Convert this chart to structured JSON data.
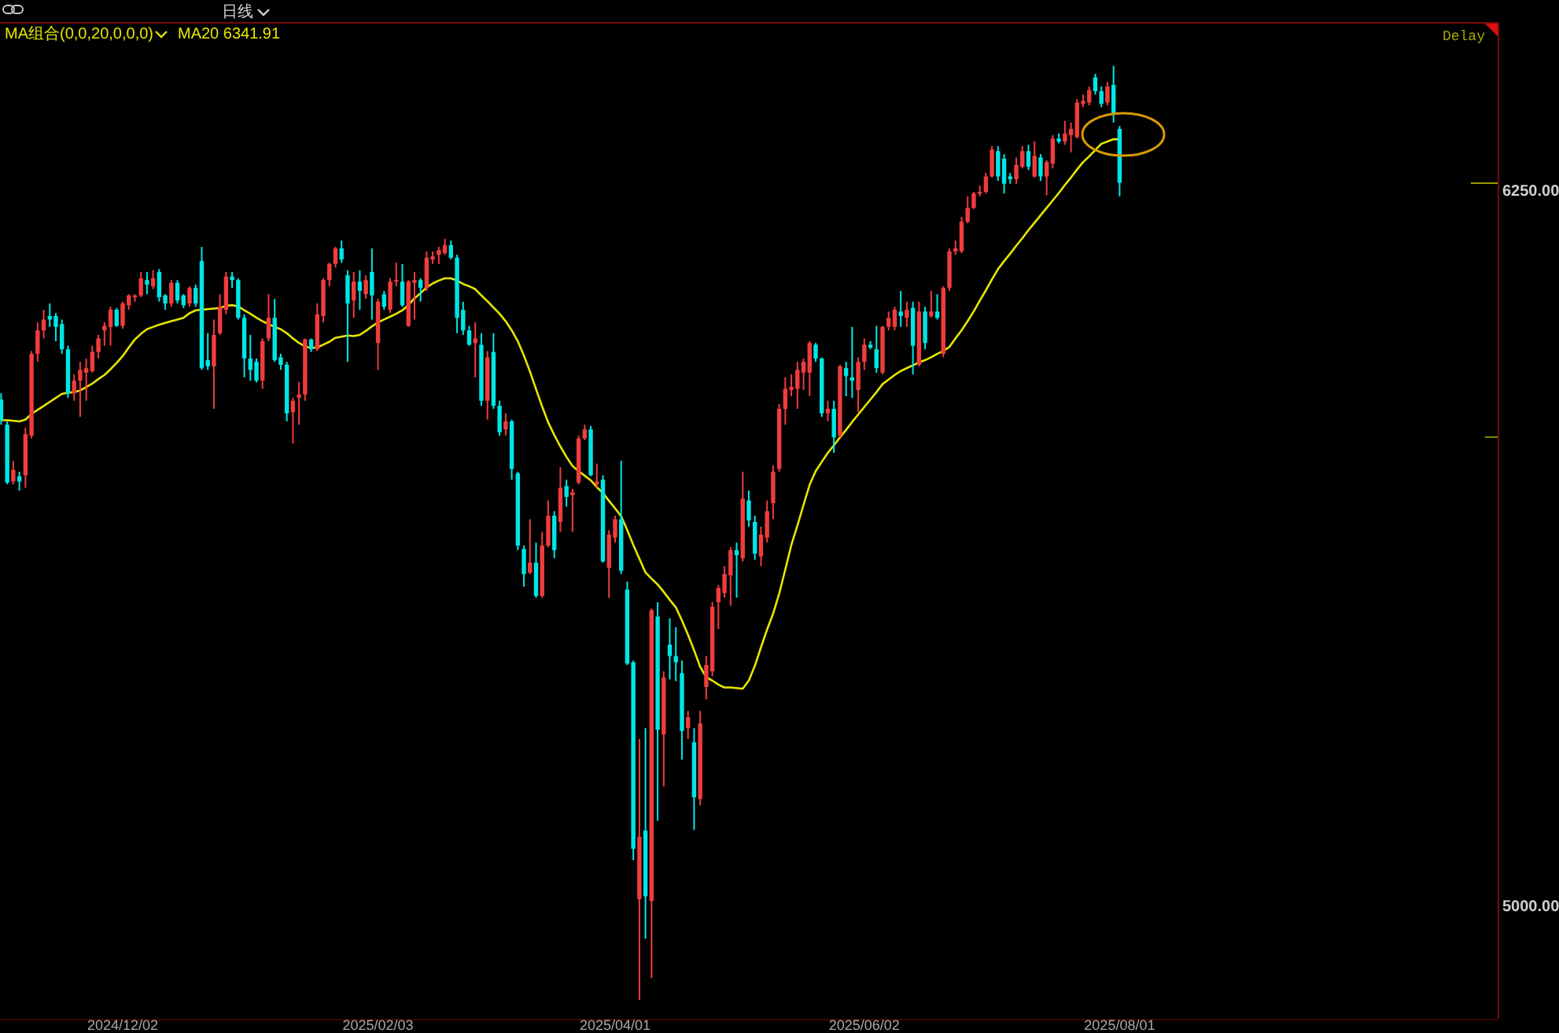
{
  "chart_data": {
    "type": "candlestick",
    "categories": [
      null,
      null,
      null,
      null,
      null,
      null,
      null,
      null,
      null,
      null,
      null,
      null,
      null,
      null,
      null,
      null,
      null,
      null,
      null,
      null,
      "2024/12/02",
      null,
      null,
      null,
      null,
      null,
      null,
      null,
      null,
      null,
      null,
      null,
      null,
      null,
      null,
      null,
      null,
      null,
      null,
      null,
      null,
      null,
      null,
      null,
      null,
      null,
      null,
      null,
      null,
      null,
      null,
      null,
      null,
      null,
      null,
      null,
      null,
      null,
      null,
      null,
      null,
      null,
      "2025/02/03",
      null,
      null,
      null,
      null,
      null,
      null,
      null,
      null,
      null,
      null,
      null,
      null,
      null,
      null,
      null,
      null,
      null,
      null,
      null,
      null,
      null,
      null,
      null,
      null,
      null,
      null,
      null,
      null,
      null,
      null,
      null,
      null,
      null,
      null,
      null,
      null,
      null,
      null,
      "2025/04/01",
      null,
      null,
      null,
      null,
      null,
      null,
      null,
      null,
      null,
      null,
      null,
      null,
      null,
      null,
      null,
      null,
      null,
      null,
      null,
      null,
      null,
      null,
      null,
      null,
      null,
      null,
      null,
      null,
      null,
      null,
      null,
      null,
      null,
      null,
      null,
      null,
      null,
      null,
      null,
      null,
      "2025/06/02",
      null,
      null,
      null,
      null,
      null,
      null,
      null,
      null,
      null,
      null,
      null,
      null,
      null,
      null,
      null,
      null,
      null,
      null,
      null,
      null,
      null,
      null,
      null,
      null,
      null,
      null,
      null,
      null,
      null,
      null,
      null,
      null,
      null,
      null,
      null,
      null,
      null,
      null,
      null,
      null,
      null,
      "2025/08/01"
    ],
    "ohlc": [
      [
        5887,
        5898,
        5843,
        5851
      ],
      [
        5843,
        5849,
        5739,
        5742
      ],
      [
        5744,
        5780,
        5739,
        5764
      ],
      [
        5753,
        5761,
        5728,
        5744
      ],
      [
        5755,
        5838,
        5733,
        5827
      ],
      [
        5824,
        5972,
        5819,
        5967
      ],
      [
        5967,
        6022,
        5953,
        6008
      ],
      [
        6008,
        6044,
        5994,
        6027
      ],
      [
        6033,
        6055,
        6014,
        6027
      ],
      [
        6033,
        6038,
        5989,
        6014
      ],
      [
        6019,
        6027,
        5967,
        5975
      ],
      [
        5975,
        5981,
        5890,
        5898
      ],
      [
        5898,
        5931,
        5885,
        5920
      ],
      [
        5920,
        5953,
        5857,
        5939
      ],
      [
        5934,
        5959,
        5885,
        5942
      ],
      [
        5937,
        5981,
        5934,
        5970
      ],
      [
        5970,
        6000,
        5959,
        5994
      ],
      [
        6008,
        6022,
        5981,
        6016
      ],
      [
        6014,
        6049,
        5981,
        6044
      ],
      [
        6044,
        6047,
        6014,
        6016
      ],
      [
        6016,
        6058,
        6011,
        6055
      ],
      [
        6052,
        6071,
        6044,
        6069
      ],
      [
        6066,
        6071,
        6058,
        6069
      ],
      [
        6069,
        6110,
        6066,
        6099
      ],
      [
        6096,
        6110,
        6071,
        6088
      ],
      [
        6085,
        6113,
        6080,
        6099
      ],
      [
        6110,
        6115,
        6058,
        6066
      ],
      [
        6069,
        6071,
        6044,
        6055
      ],
      [
        6055,
        6096,
        6049,
        6091
      ],
      [
        6091,
        6096,
        6055,
        6060
      ],
      [
        6069,
        6071,
        6047,
        6052
      ],
      [
        6055,
        6085,
        6049,
        6082
      ],
      [
        6082,
        6088,
        6049,
        6055
      ],
      [
        6129,
        6154,
        5939,
        5942
      ],
      [
        5956,
        6003,
        5939,
        5945
      ],
      [
        5945,
        6027,
        5871,
        6000
      ],
      [
        6003,
        6071,
        6000,
        6049
      ],
      [
        6044,
        6110,
        6036,
        6102
      ],
      [
        6102,
        6110,
        6082,
        6096
      ],
      [
        6096,
        6099,
        6027,
        6030
      ],
      [
        6030,
        6036,
        5926,
        5959
      ],
      [
        5959,
        6000,
        5920,
        5939
      ],
      [
        5953,
        5959,
        5917,
        5920
      ],
      [
        5920,
        5994,
        5906,
        5989
      ],
      [
        5994,
        6071,
        5989,
        6030
      ],
      [
        6030,
        6063,
        5953,
        5956
      ],
      [
        5961,
        5967,
        5939,
        5948
      ],
      [
        5948,
        5953,
        5849,
        5863
      ],
      [
        5865,
        5890,
        5810,
        5885
      ],
      [
        5890,
        5918,
        5843,
        5896
      ],
      [
        5896,
        5994,
        5885,
        5992
      ],
      [
        5992,
        5994,
        5970,
        5975
      ],
      [
        5975,
        6055,
        5972,
        6036
      ],
      [
        6033,
        6099,
        6022,
        6096
      ],
      [
        6096,
        6126,
        6085,
        6124
      ],
      [
        6124,
        6154,
        6118,
        6151
      ],
      [
        6151,
        6165,
        6126,
        6132
      ],
      [
        6104,
        6113,
        5953,
        6055
      ],
      [
        6060,
        6110,
        6030,
        6093
      ],
      [
        6093,
        6113,
        6044,
        6077
      ],
      [
        6071,
        6104,
        6063,
        6096
      ],
      [
        6110,
        6151,
        6027,
        6069
      ],
      [
        5986,
        6063,
        5939,
        6058
      ],
      [
        6071,
        6077,
        6044,
        6049
      ],
      [
        6044,
        6099,
        6038,
        6093
      ],
      [
        6093,
        6126,
        6085,
        6096
      ],
      [
        6093,
        6124,
        6049,
        6052
      ],
      [
        6016,
        6096,
        6014,
        6093
      ],
      [
        6091,
        6110,
        6027,
        6096
      ],
      [
        6096,
        6099,
        6058,
        6082
      ],
      [
        6082,
        6146,
        6077,
        6135
      ],
      [
        6132,
        6146,
        6124,
        6137
      ],
      [
        6140,
        6154,
        6124,
        6148
      ],
      [
        6143,
        6168,
        6140,
        6157
      ],
      [
        6157,
        6165,
        6132,
        6135
      ],
      [
        6135,
        6140,
        6003,
        6030
      ],
      [
        6044,
        6058,
        6000,
        6008
      ],
      [
        6008,
        6016,
        5981,
        5983
      ],
      [
        5986,
        6022,
        5926,
        5994
      ],
      [
        5983,
        6003,
        5876,
        5885
      ],
      [
        5885,
        5972,
        5852,
        5961
      ],
      [
        5970,
        6003,
        5871,
        5876
      ],
      [
        5876,
        5885,
        5824,
        5830
      ],
      [
        5835,
        5863,
        5824,
        5849
      ],
      [
        5849,
        5852,
        5747,
        5766
      ],
      [
        5758,
        5761,
        5624,
        5632
      ],
      [
        5626,
        5632,
        5560,
        5582
      ],
      [
        5585,
        5678,
        5582,
        5602
      ],
      [
        5602,
        5637,
        5541,
        5544
      ],
      [
        5544,
        5656,
        5541,
        5632
      ],
      [
        5632,
        5711,
        5629,
        5684
      ],
      [
        5684,
        5692,
        5610,
        5624
      ],
      [
        5673,
        5769,
        5656,
        5733
      ],
      [
        5736,
        5747,
        5700,
        5717
      ],
      [
        5720,
        5731,
        5656,
        5725
      ],
      [
        5742,
        5824,
        5739,
        5819
      ],
      [
        5819,
        5843,
        5816,
        5835
      ],
      [
        5835,
        5841,
        5753,
        5755
      ],
      [
        5739,
        5775,
        5733,
        5744
      ],
      [
        5747,
        5755,
        5602,
        5604
      ],
      [
        5593,
        5659,
        5541,
        5651
      ],
      [
        5646,
        5684,
        5637,
        5678
      ],
      [
        5678,
        5780,
        5582,
        5588
      ],
      [
        5555,
        5569,
        5423,
        5426
      ],
      [
        5428,
        5431,
        5082,
        5102
      ],
      [
        5014,
        5294,
        4838,
        5123
      ],
      [
        5134,
        5313,
        4945,
        5019
      ],
      [
        5011,
        5522,
        4876,
        5519
      ],
      [
        5508,
        5533,
        5151,
        5310
      ],
      [
        5302,
        5412,
        5211,
        5401
      ],
      [
        5459,
        5505,
        5398,
        5439
      ],
      [
        5439,
        5489,
        5395,
        5428
      ],
      [
        5409,
        5431,
        5258,
        5308
      ],
      [
        5313,
        5343,
        5294,
        5332
      ],
      [
        5288,
        5313,
        5135,
        5192
      ],
      [
        5189,
        5343,
        5178,
        5321
      ],
      [
        5385,
        5439,
        5363,
        5423
      ],
      [
        5412,
        5533,
        5404,
        5525
      ],
      [
        5533,
        5563,
        5486,
        5558
      ],
      [
        5549,
        5596,
        5541,
        5582
      ],
      [
        5580,
        5629,
        5527,
        5624
      ],
      [
        5624,
        5637,
        5541,
        5615
      ],
      [
        5610,
        5761,
        5604,
        5714
      ],
      [
        5711,
        5728,
        5665,
        5676
      ],
      [
        5673,
        5684,
        5607,
        5618
      ],
      [
        5613,
        5665,
        5596,
        5651
      ],
      [
        5646,
        5711,
        5637,
        5692
      ],
      [
        5706,
        5772,
        5678,
        5761
      ],
      [
        5766,
        5879,
        5761,
        5871
      ],
      [
        5871,
        5926,
        5843,
        5906
      ],
      [
        5904,
        5931,
        5893,
        5909
      ],
      [
        5906,
        5953,
        5871,
        5939
      ],
      [
        5934,
        5959,
        5904,
        5953
      ],
      [
        5934,
        5989,
        5893,
        5986
      ],
      [
        5983,
        5986,
        5953,
        5959
      ],
      [
        5959,
        5961,
        5857,
        5863
      ],
      [
        5863,
        5885,
        5849,
        5871
      ],
      [
        5871,
        5885,
        5794,
        5821
      ],
      [
        5824,
        5948,
        5821,
        5945
      ],
      [
        5942,
        5953,
        5893,
        5928
      ],
      [
        5926,
        6014,
        5890,
        5920
      ],
      [
        5904,
        5961,
        5865,
        5953
      ],
      [
        5953,
        5994,
        5939,
        5983
      ],
      [
        5983,
        5989,
        5975,
        5978
      ],
      [
        5975,
        6016,
        5934,
        5942
      ],
      [
        5934,
        6016,
        5931,
        6014
      ],
      [
        6014,
        6041,
        6008,
        6030
      ],
      [
        6014,
        6049,
        6008,
        6044
      ],
      [
        6041,
        6077,
        6014,
        6033
      ],
      [
        6030,
        6058,
        6014,
        6044
      ],
      [
        6047,
        6058,
        5931,
        5981
      ],
      [
        5948,
        6058,
        5945,
        6041
      ],
      [
        6041,
        6049,
        5975,
        5986
      ],
      [
        6033,
        6077,
        6030,
        6041
      ],
      [
        6041,
        6071,
        6027,
        6030
      ],
      [
        5967,
        6085,
        5961,
        6082
      ],
      [
        6082,
        6151,
        6077,
        6146
      ],
      [
        6146,
        6165,
        6140,
        6151
      ],
      [
        6146,
        6206,
        6143,
        6198
      ],
      [
        6198,
        6242,
        6195,
        6222
      ],
      [
        6222,
        6250,
        6220,
        6247
      ],
      [
        6247,
        6261,
        6242,
        6250
      ],
      [
        6250,
        6283,
        6247,
        6277
      ],
      [
        6277,
        6330,
        6275,
        6324
      ],
      [
        6321,
        6330,
        6269,
        6277
      ],
      [
        6308,
        6316,
        6247,
        6264
      ],
      [
        6277,
        6283,
        6264,
        6272
      ],
      [
        6272,
        6310,
        6264,
        6297
      ],
      [
        6294,
        6330,
        6291,
        6321
      ],
      [
        6321,
        6332,
        6288,
        6294
      ],
      [
        6277,
        6338,
        6275,
        6313
      ],
      [
        6310,
        6316,
        6269,
        6277
      ],
      [
        6277,
        6305,
        6244,
        6302
      ],
      [
        6299,
        6349,
        6291,
        6343
      ],
      [
        6343,
        6352,
        6335,
        6338
      ],
      [
        6338,
        6374,
        6332,
        6352
      ],
      [
        6349,
        6371,
        6319,
        6360
      ],
      [
        6346,
        6412,
        6343,
        6406
      ],
      [
        6404,
        6420,
        6398,
        6409
      ],
      [
        6406,
        6434,
        6401,
        6428
      ],
      [
        6450,
        6456,
        6420,
        6426
      ],
      [
        6426,
        6434,
        6398,
        6404
      ],
      [
        6406,
        6442,
        6401,
        6434
      ],
      [
        6437,
        6470,
        6371,
        6385
      ],
      [
        6360,
        6365,
        6242,
        6266
      ]
    ],
    "colors": [
      "#00e6e6",
      "#00e6e6",
      "#f03c3c",
      "#00e6e6",
      "#f03c3c",
      "#f03c3c",
      "#f03c3c",
      "#f03c3c",
      "#00e6e6",
      "#00e6e6",
      "#00e6e6",
      "#00e6e6",
      "#f03c3c",
      "#f03c3c",
      "#f03c3c",
      "#f03c3c",
      "#f03c3c",
      "#f03c3c",
      "#f03c3c",
      "#00e6e6",
      "#f03c3c",
      "#f03c3c",
      "#f03c3c",
      "#f03c3c",
      "#00e6e6",
      "#f03c3c",
      "#00e6e6",
      "#00e6e6",
      "#f03c3c",
      "#00e6e6",
      "#00e6e6",
      "#f03c3c",
      "#00e6e6",
      "#00e6e6",
      "#00e6e6",
      "#f03c3c",
      "#f03c3c",
      "#f03c3c",
      "#00e6e6",
      "#00e6e6",
      "#00e6e6",
      "#00e6e6",
      "#00e6e6",
      "#f03c3c",
      "#f03c3c",
      "#00e6e6",
      "#00e6e6",
      "#00e6e6",
      "#f03c3c",
      "#f03c3c",
      "#f03c3c",
      "#00e6e6",
      "#f03c3c",
      "#f03c3c",
      "#f03c3c",
      "#f03c3c",
      "#00e6e6",
      "#00e6e6",
      "#f03c3c",
      "#00e6e6",
      "#f03c3c",
      "#00e6e6",
      "#f03c3c",
      "#00e6e6",
      "#f03c3c",
      "#f03c3c",
      "#00e6e6",
      "#f03c3c",
      "#f03c3c",
      "#00e6e6",
      "#f03c3c",
      "#f03c3c",
      "#f03c3c",
      "#f03c3c",
      "#00e6e6",
      "#00e6e6",
      "#00e6e6",
      "#00e6e6",
      "#f03c3c",
      "#00e6e6",
      "#f03c3c",
      "#00e6e6",
      "#00e6e6",
      "#f03c3c",
      "#00e6e6",
      "#00e6e6",
      "#00e6e6",
      "#f03c3c",
      "#00e6e6",
      "#f03c3c",
      "#f03c3c",
      "#00e6e6",
      "#f03c3c",
      "#00e6e6",
      "#f03c3c",
      "#f03c3c",
      "#f03c3c",
      "#00e6e6",
      "#f03c3c",
      "#00e6e6",
      "#f03c3c",
      "#f03c3c",
      "#00e6e6",
      "#00e6e6",
      "#00e6e6",
      "#f03c3c",
      "#00e6e6",
      "#f03c3c",
      "#00e6e6",
      "#f03c3c",
      "#00e6e6",
      "#00e6e6",
      "#00e6e6",
      "#f03c3c",
      "#00e6e6",
      "#f03c3c",
      "#f03c3c",
      "#f03c3c",
      "#f03c3c",
      "#f03c3c",
      "#f03c3c",
      "#00e6e6",
      "#f03c3c",
      "#00e6e6",
      "#00e6e6",
      "#f03c3c",
      "#f03c3c",
      "#f03c3c",
      "#f03c3c",
      "#f03c3c",
      "#f03c3c",
      "#f03c3c",
      "#f03c3c",
      "#f03c3c",
      "#00e6e6",
      "#00e6e6",
      "#f03c3c",
      "#00e6e6",
      "#f03c3c",
      "#00e6e6",
      "#00e6e6",
      "#f03c3c",
      "#f03c3c",
      "#00e6e6",
      "#00e6e6",
      "#f03c3c",
      "#f03c3c",
      "#f03c3c",
      "#00e6e6",
      "#f03c3c",
      "#00e6e6",
      "#f03c3c",
      "#00e6e6",
      "#f03c3c",
      "#00e6e6",
      "#f03c3c",
      "#f03c3c",
      "#f03c3c",
      "#f03c3c",
      "#f03c3c",
      "#f03c3c",
      "#f03c3c",
      "#f03c3c",
      "#f03c3c",
      "#00e6e6",
      "#00e6e6",
      "#00e6e6",
      "#f03c3c",
      "#f03c3c",
      "#00e6e6",
      "#f03c3c",
      "#00e6e6",
      "#f03c3c",
      "#f03c3c",
      "#00e6e6",
      "#f03c3c",
      "#f03c3c",
      "#f03c3c",
      "#f03c3c",
      "#f03c3c",
      "#00e6e6",
      "#00e6e6",
      "#f03c3c",
      "#00e6e6",
      "#00e6e6"
    ],
    "series": [
      {
        "name": "MA20 6341.91",
        "type": "line",
        "color": "#e6e600",
        "values": [
          5851,
          5851,
          5850,
          5849,
          5852,
          5862,
          5869,
          5876,
          5883,
          5890,
          5897,
          5899,
          5900,
          5903,
          5909,
          5915,
          5923,
          5930,
          5940,
          5951,
          5963,
          5978,
          5992,
          6002,
          6010,
          6014,
          6018,
          6021,
          6024,
          6027,
          6030,
          6038,
          6043,
          6044,
          6045,
          6046,
          6047,
          6051,
          6052,
          6050,
          6043,
          6037,
          6030,
          6024,
          6019,
          6014,
          6010,
          6003,
          5994,
          5986,
          5980,
          5977,
          5978,
          5983,
          5988,
          5995,
          5997,
          5999,
          5998,
          6000,
          6007,
          6015,
          6022,
          6027,
          6032,
          6037,
          6043,
          6052,
          6064,
          6073,
          6083,
          6090,
          6095,
          6099,
          6099,
          6095,
          6089,
          6085,
          6080,
          6069,
          6059,
          6048,
          6037,
          6024,
          6008,
          5989,
          5964,
          5936,
          5905,
          5875,
          5847,
          5825,
          5805,
          5787,
          5771,
          5762,
          5754,
          5746,
          5734,
          5724,
          5710,
          5697,
          5683,
          5659,
          5633,
          5609,
          5585,
          5574,
          5564,
          5551,
          5537,
          5524,
          5501,
          5476,
          5449,
          5420,
          5402,
          5396,
          5389,
          5384,
          5384,
          5383,
          5382,
          5396,
          5422,
          5454,
          5485,
          5513,
          5548,
          5590,
          5633,
          5667,
          5703,
          5738,
          5762,
          5778,
          5794,
          5807,
          5821,
          5834,
          5848,
          5861,
          5874,
          5887,
          5900,
          5914,
          5922,
          5930,
          5937,
          5942,
          5947,
          5952,
          5956,
          5961,
          5967,
          5972,
          5979,
          5994,
          6008,
          6024,
          6041,
          6060,
          6078,
          6097,
          6115,
          6129,
          6142,
          6156,
          6169,
          6183,
          6196,
          6209,
          6222,
          6235,
          6248,
          6262,
          6275,
          6289,
          6302,
          6312,
          6323,
          6334,
          6338,
          6342,
          6341.91
        ]
      }
    ],
    "ylim": [
      4805,
      6544
    ],
    "yticks": [
      {
        "value": 6250,
        "label": "6250.00"
      },
      {
        "value": 5000,
        "label": "5000.00"
      }
    ],
    "legend": "top left",
    "annotations": [
      "日线",
      "MA组合(0,0,20,0,0,0)",
      "Delay"
    ]
  }
}
